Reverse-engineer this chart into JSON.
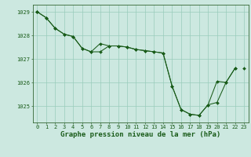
{
  "title": "Graphe pression niveau de la mer (hPa)",
  "hours": [
    0,
    1,
    2,
    3,
    4,
    5,
    6,
    7,
    8,
    9,
    10,
    11,
    12,
    13,
    14,
    15,
    16,
    17,
    18,
    19,
    20,
    21,
    22,
    23
  ],
  "line1": [
    1029.0,
    1028.75,
    1028.3,
    1028.05,
    1027.95,
    1027.45,
    1027.3,
    1027.65,
    1027.55,
    1027.55,
    1027.5,
    1027.4,
    1027.35,
    1027.3,
    1027.25,
    1025.85,
    1024.85,
    1024.65,
    1024.6,
    1025.05,
    1025.15,
    1026.0,
    1026.6,
    null
  ],
  "line2": [
    1029.0,
    1028.75,
    1028.3,
    1028.05,
    1027.95,
    1027.45,
    1027.3,
    1027.3,
    1027.55,
    1027.55,
    1027.5,
    1027.4,
    1027.35,
    1027.3,
    1027.25,
    1025.85,
    1024.85,
    1024.65,
    1024.6,
    1025.05,
    1026.05,
    1026.0,
    1026.6,
    null
  ],
  "line3": [
    1029.0,
    null,
    null,
    null,
    null,
    null,
    null,
    null,
    null,
    null,
    null,
    null,
    null,
    null,
    null,
    null,
    null,
    null,
    null,
    null,
    null,
    null,
    null,
    1026.6
  ],
  "ylim": [
    1024.3,
    1029.3
  ],
  "yticks": [
    1025,
    1026,
    1027,
    1028,
    1029
  ],
  "bg_color": "#cce8e0",
  "grid_color": "#99ccbb",
  "line_color": "#1a5c1a",
  "marker_size": 2.0,
  "linewidth": 0.75,
  "title_fontsize": 6.5,
  "tick_fontsize": 5.0,
  "fig_width": 3.2,
  "fig_height": 2.0
}
